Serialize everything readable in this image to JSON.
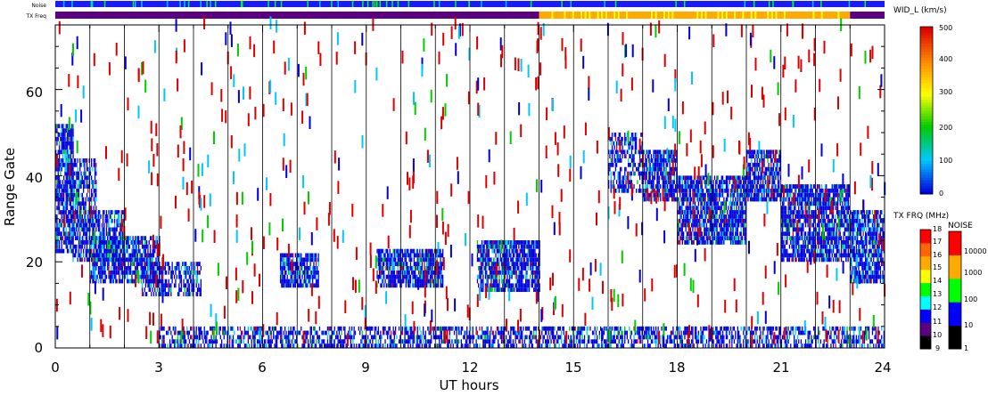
{
  "chart_data": {
    "type": "heatmap",
    "xlabel": "UT hours",
    "ylabel": "Range Gate",
    "xlim": [
      0,
      24
    ],
    "ylim": [
      0,
      75
    ],
    "x_ticks": [
      "0",
      "3",
      "6",
      "9",
      "12",
      "15",
      "18",
      "21",
      "24"
    ],
    "y_ticks": [
      "0",
      "20",
      "40",
      "60"
    ],
    "hour_gridlines": true,
    "colorbar_width": {
      "title": "WID_L (km/s)",
      "range": [
        0,
        500
      ],
      "ticks": [
        "0",
        "100",
        "200",
        "300",
        "400",
        "500"
      ],
      "colors": [
        "#0000dd",
        "#00c8ff",
        "#00cc00",
        "#ffff00",
        "#ff8800",
        "#dd0000"
      ]
    },
    "colorbar_txfreq": {
      "title": "TX FRQ (MHz)",
      "ticks": [
        "9",
        "10",
        "11",
        "12",
        "13",
        "14",
        "15",
        "16",
        "17",
        "18"
      ],
      "colors": [
        "#000000",
        "#5a0080",
        "#0000ff",
        "#00ffff",
        "#00ff00",
        "#ffff00",
        "#ffaa00",
        "#ff6600",
        "#ff0000"
      ]
    },
    "colorbar_noise": {
      "title": "NOISE",
      "ticks": [
        "1",
        "10",
        "100",
        "1000",
        "10000"
      ],
      "colors": [
        "#000000",
        "#0000ff",
        "#00ff00",
        "#ffaa00",
        "#ff0000"
      ]
    },
    "top_bars": {
      "noise_label": "Noise",
      "txfreq_label": "TX Freq",
      "txfreq_segments": [
        {
          "start": 0,
          "end": 14,
          "color": "#5a0080"
        },
        {
          "start": 14,
          "end": 23,
          "color": "#ffaa00"
        },
        {
          "start": 23,
          "end": 24,
          "color": "#5a0080"
        }
      ]
    },
    "echo_regions": [
      {
        "x0": 0.0,
        "x1": 0.5,
        "y0": 22,
        "y1": 52,
        "density": 0.75
      },
      {
        "x0": 0.3,
        "x1": 1.2,
        "y0": 28,
        "y1": 44,
        "density": 0.6
      },
      {
        "x0": 0.5,
        "x1": 2.0,
        "y0": 20,
        "y1": 32,
        "density": 0.7
      },
      {
        "x0": 1.0,
        "x1": 3.0,
        "y0": 15,
        "y1": 26,
        "density": 0.75
      },
      {
        "x0": 2.5,
        "x1": 4.2,
        "y0": 12,
        "y1": 20,
        "density": 0.6
      },
      {
        "x0": 6.5,
        "x1": 7.6,
        "y0": 14,
        "y1": 22,
        "density": 0.8
      },
      {
        "x0": 9.3,
        "x1": 11.2,
        "y0": 14,
        "y1": 23,
        "density": 0.8
      },
      {
        "x0": 12.2,
        "x1": 14.0,
        "y0": 13,
        "y1": 25,
        "density": 0.8
      },
      {
        "x0": 16.0,
        "x1": 17.0,
        "y0": 36,
        "y1": 50,
        "density": 0.55
      },
      {
        "x0": 17.0,
        "x1": 18.0,
        "y0": 34,
        "y1": 46,
        "density": 0.8
      },
      {
        "x0": 18.0,
        "x1": 20.0,
        "y0": 24,
        "y1": 40,
        "density": 0.8
      },
      {
        "x0": 20.0,
        "x1": 21.0,
        "y0": 34,
        "y1": 46,
        "density": 0.8
      },
      {
        "x0": 21.0,
        "x1": 23.0,
        "y0": 20,
        "y1": 38,
        "density": 0.8
      },
      {
        "x0": 23.0,
        "x1": 24.0,
        "y0": 15,
        "y1": 32,
        "density": 0.8
      },
      {
        "x0": 3.0,
        "x1": 24.0,
        "y0": 0,
        "y1": 5,
        "density": 0.55
      }
    ]
  }
}
